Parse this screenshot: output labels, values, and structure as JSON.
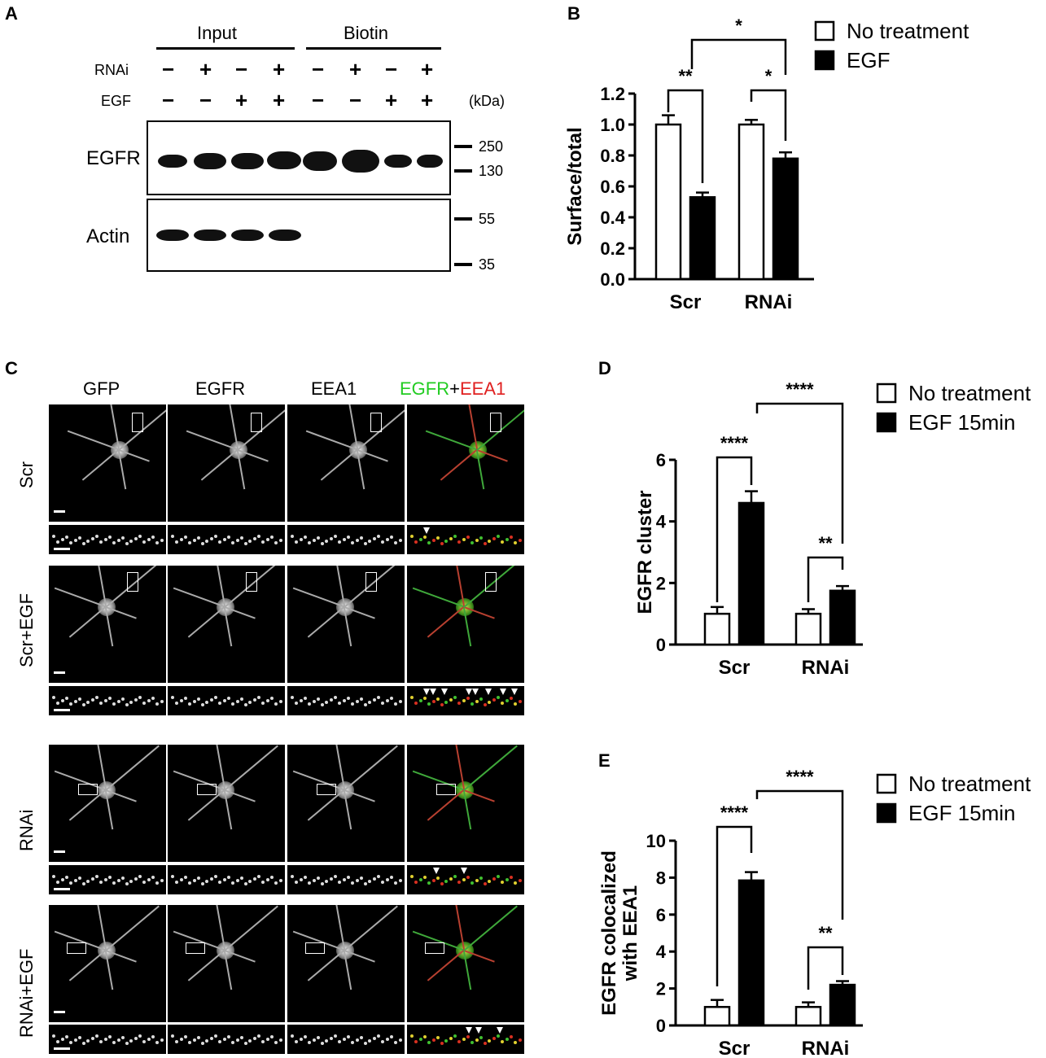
{
  "panels": {
    "A": {
      "letter": "A",
      "group_input": "Input",
      "group_biotin": "Biotin",
      "row_rnai_label": "RNAi",
      "row_egf_label": "EGF",
      "rnai_signs": [
        "−",
        "+",
        "−",
        "+",
        "−",
        "+",
        "−",
        "+"
      ],
      "egf_signs": [
        "−",
        "−",
        "+",
        "+",
        "−",
        "−",
        "+",
        "+"
      ],
      "kda_label": "(kDa)",
      "blot_egfr_label": "EGFR",
      "blot_actin_label": "Actin",
      "markers": [
        "250",
        "130",
        "55",
        "35"
      ]
    },
    "B": {
      "letter": "B"
    },
    "C": {
      "letter": "C",
      "columns": [
        "GFP",
        "EGFR",
        "EEA1"
      ],
      "merge_green": "EGFR",
      "merge_plus": "+",
      "merge_red": "EEA1",
      "rows": [
        "Scr",
        "Scr+EGF",
        "RNAi",
        "RNAi+EGF"
      ]
    },
    "D": {
      "letter": "D"
    },
    "E": {
      "letter": "E"
    }
  },
  "chart_data": [
    {
      "type": "bar",
      "panel": "B",
      "categories": [
        "Scr",
        "RNAi"
      ],
      "series": [
        {
          "name": "No treatment",
          "values": [
            1.0,
            1.0
          ],
          "errors": [
            0.06,
            0.03
          ],
          "color": "#ffffff"
        },
        {
          "name": "EGF",
          "values": [
            0.53,
            0.78
          ],
          "errors": [
            0.03,
            0.04
          ],
          "color": "#000000"
        }
      ],
      "ylabel": "Surface/total",
      "ylim": [
        0,
        1.2
      ],
      "yticks": [
        "0.0",
        "0.2",
        "0.4",
        "0.6",
        "0.8",
        "1.0",
        "1.2"
      ],
      "significance": [
        "**",
        "*",
        "*"
      ],
      "legend": "top-right"
    },
    {
      "type": "bar",
      "panel": "D",
      "categories": [
        "Scr",
        "RNAi"
      ],
      "series": [
        {
          "name": "No treatment",
          "values": [
            1.0,
            1.0
          ],
          "errors": [
            0.22,
            0.15
          ],
          "color": "#ffffff"
        },
        {
          "name": "EGF 15min",
          "values": [
            4.6,
            1.75
          ],
          "errors": [
            0.38,
            0.15
          ],
          "color": "#000000"
        }
      ],
      "ylabel": "EGFR cluster",
      "ylim": [
        0,
        6
      ],
      "yticks": [
        "0",
        "2",
        "4",
        "6"
      ],
      "significance": [
        "****",
        "**",
        "****"
      ],
      "legend": "top-right"
    },
    {
      "type": "bar",
      "panel": "E",
      "categories": [
        "Scr",
        "RNAi"
      ],
      "series": [
        {
          "name": "No treatment",
          "values": [
            1.0,
            1.0
          ],
          "errors": [
            0.38,
            0.25
          ],
          "color": "#ffffff"
        },
        {
          "name": "EGF 15min",
          "values": [
            7.85,
            2.2
          ],
          "errors": [
            0.45,
            0.2
          ],
          "color": "#000000"
        }
      ],
      "ylabel": "EGFR colocalized with EEA1",
      "ylabel_lines": [
        "EGFR colocalized",
        "with EEA1"
      ],
      "ylim": [
        0,
        10
      ],
      "yticks": [
        "0",
        "2",
        "4",
        "6",
        "8",
        "10"
      ],
      "significance": [
        "****",
        "**",
        "****"
      ],
      "legend": "top-right"
    }
  ]
}
